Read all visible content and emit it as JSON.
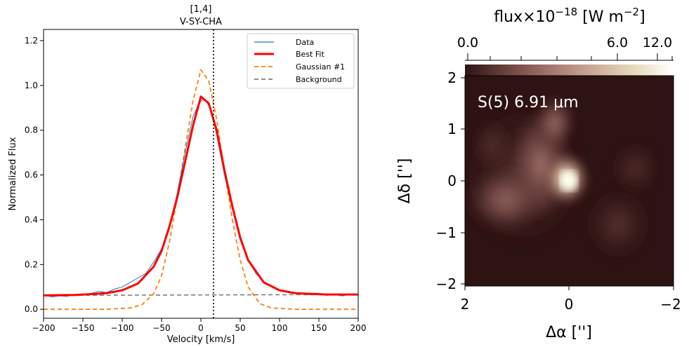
{
  "chart_data": [
    {
      "type": "line",
      "title_line1": "[1,4]",
      "title_line2": "V-SY-CHA",
      "xlabel": "Velocity [km/s]",
      "ylabel": "Normalized Flux",
      "xlim": [
        -200,
        200
      ],
      "ylim": [
        -0.04,
        1.25
      ],
      "xticks": [
        -200,
        -150,
        -100,
        -50,
        0,
        50,
        100,
        150,
        200
      ],
      "yticks": [
        0.0,
        0.2,
        0.4,
        0.6,
        0.8,
        1.0,
        1.2
      ],
      "vline_x": 16,
      "legend_position": "top-right",
      "legend": [
        "Data",
        "Best Fit",
        "Gaussian #1",
        "Background"
      ],
      "colors": {
        "data": "#1f77b4",
        "best_fit": "#ff0000",
        "gaussian": "#ff7f0e",
        "background": "#7f7f7f",
        "vline": "#000000"
      },
      "series": [
        {
          "name": "Best Fit",
          "x": [
            -200,
            -160,
            -120,
            -100,
            -80,
            -60,
            -50,
            -40,
            -30,
            -20,
            -10,
            0,
            10,
            20,
            30,
            40,
            50,
            60,
            80,
            100,
            120,
            160,
            200
          ],
          "y": [
            0.062,
            0.064,
            0.072,
            0.085,
            0.115,
            0.19,
            0.26,
            0.37,
            0.5,
            0.66,
            0.82,
            0.95,
            0.92,
            0.8,
            0.62,
            0.46,
            0.32,
            0.22,
            0.12,
            0.085,
            0.072,
            0.066,
            0.066
          ]
        },
        {
          "name": "Gaussian #1",
          "x": [
            -200,
            -120,
            -90,
            -75,
            -60,
            -50,
            -40,
            -30,
            -20,
            -10,
            0,
            10,
            20,
            30,
            40,
            50,
            60,
            75,
            90,
            120,
            200
          ],
          "y": [
            0.0,
            0.0,
            0.006,
            0.02,
            0.07,
            0.15,
            0.3,
            0.5,
            0.72,
            0.93,
            1.07,
            1.02,
            0.85,
            0.62,
            0.4,
            0.22,
            0.1,
            0.025,
            0.006,
            0.0,
            0.0
          ]
        },
        {
          "name": "Background",
          "x": [
            -200,
            200
          ],
          "y": [
            0.062,
            0.066
          ]
        },
        {
          "name": "Data",
          "x": [
            -200,
            -190,
            -180,
            -170,
            -160,
            -150,
            -140,
            -130,
            -120,
            -110,
            -100,
            -90,
            -80,
            -70,
            -60,
            -50,
            -40,
            -30,
            -20,
            -15,
            -10,
            -5,
            0,
            5,
            10,
            15,
            20,
            30,
            40,
            50,
            60,
            70,
            80,
            90,
            100,
            110,
            120,
            130,
            140,
            150,
            160,
            170,
            180,
            190,
            200
          ],
          "y": [
            0.065,
            0.055,
            0.06,
            0.058,
            0.067,
            0.062,
            0.07,
            0.08,
            0.075,
            0.09,
            0.1,
            0.12,
            0.14,
            0.16,
            0.21,
            0.27,
            0.36,
            0.52,
            0.7,
            0.78,
            0.86,
            0.9,
            0.93,
            0.94,
            0.91,
            0.86,
            0.78,
            0.6,
            0.45,
            0.31,
            0.22,
            0.16,
            0.12,
            0.1,
            0.085,
            0.075,
            0.07,
            0.068,
            0.065,
            0.07,
            0.062,
            0.066,
            0.06,
            0.068,
            0.065
          ]
        }
      ]
    },
    {
      "type": "heatmap",
      "colorbar_label_prefix": "flux×10",
      "colorbar_label_exp": "−18",
      "colorbar_label_mid": " [W m",
      "colorbar_label_exp2": "−2",
      "colorbar_label_suffix": "]",
      "colorbar_ticks": [
        "0.0",
        "6.0",
        "12.0"
      ],
      "annotation": "S(5) 6.91 μm",
      "xlabel": "Δα ['']",
      "ylabel": "Δδ ['']",
      "xlim": [
        2,
        -2
      ],
      "ylim": [
        -2,
        2
      ],
      "xticks": [
        "2",
        "0",
        "−2"
      ],
      "yticks": [
        "2",
        "1",
        "0",
        "−1",
        "−2"
      ],
      "colormap": "pink"
    }
  ]
}
